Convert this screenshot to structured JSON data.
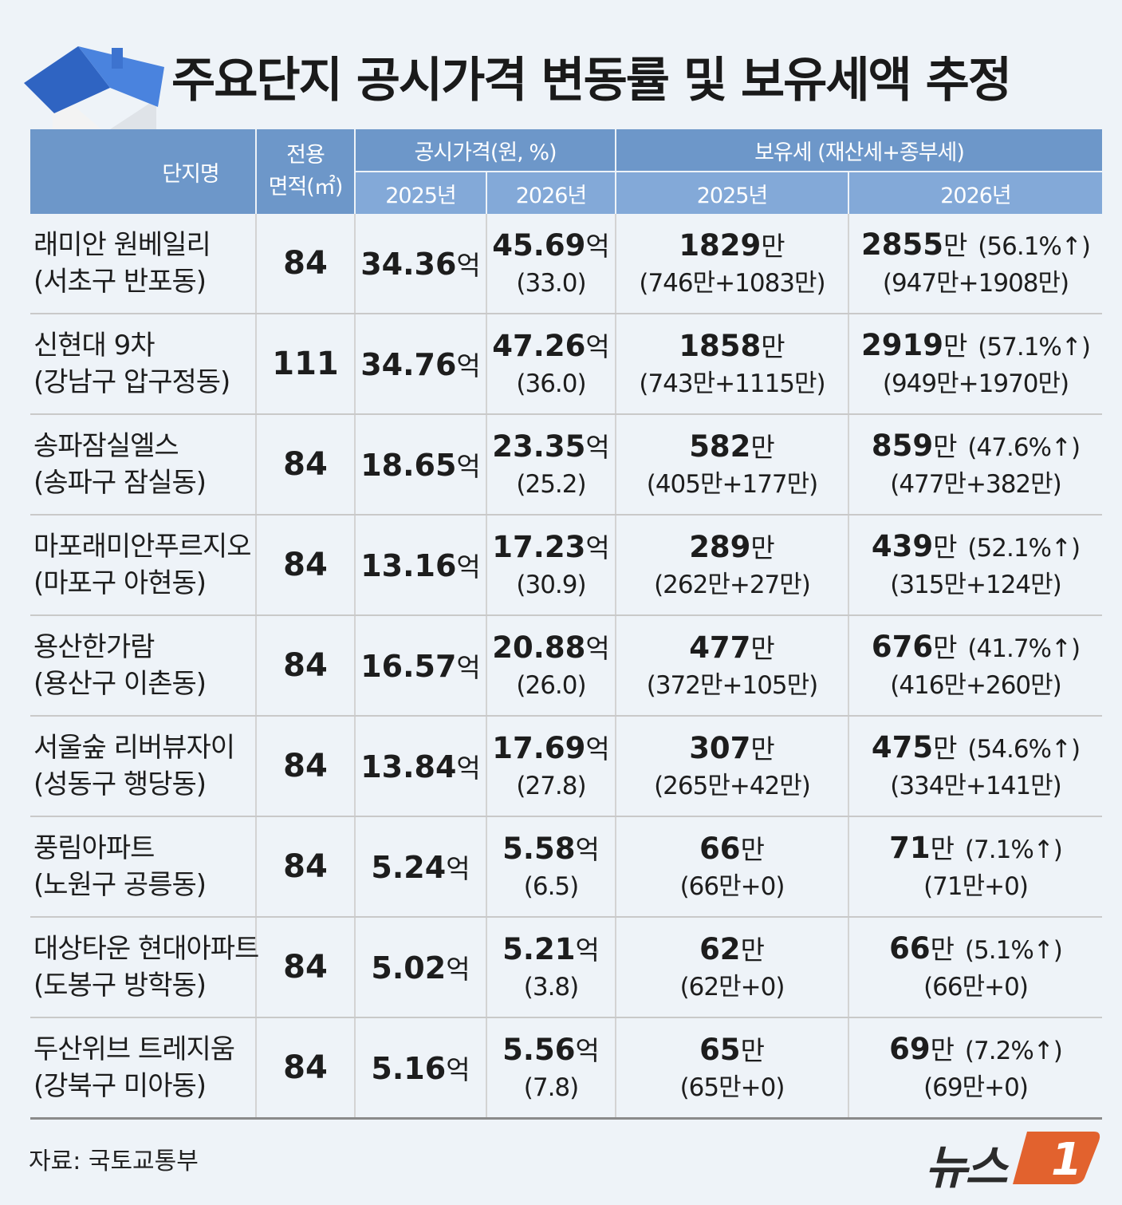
{
  "title": "주요단지 공시가격 변동률 및 보유세액 추정",
  "header": {
    "complex": "단지명",
    "area_line1": "전용",
    "area_line2": "면적(㎡)",
    "price_group": "공시가격(원, %)",
    "tax_group": "보유세 (재산세+종부세)",
    "y2025": "2025년",
    "y2026": "2026년"
  },
  "units": {
    "eok": "억",
    "man": "만"
  },
  "chart_data": {
    "type": "table",
    "title": "주요단지 공시가격 변동률 및 보유세액 추정",
    "columns": [
      "단지명",
      "전용 면적(㎡)",
      "공시가격 2025년",
      "공시가격 2026년",
      "보유세 2025년",
      "보유세 2026년"
    ],
    "rows": [
      {
        "name": "래미안 원베일리",
        "district": "(서초구 반포동)",
        "area": "84",
        "price2025": "34.36",
        "price2026": "45.69",
        "price_change": "(33.0)",
        "tax2025": "1829",
        "tax2025_detail": "(746만+1083만)",
        "tax2026": "2855",
        "tax2026_change": "(56.1%↑)",
        "tax2026_detail": "(947만+1908만)"
      },
      {
        "name": "신현대 9차",
        "district": "(강남구 압구정동)",
        "area": "111",
        "price2025": "34.76",
        "price2026": "47.26",
        "price_change": "(36.0)",
        "tax2025": "1858",
        "tax2025_detail": "(743만+1115만)",
        "tax2026": "2919",
        "tax2026_change": "(57.1%↑)",
        "tax2026_detail": "(949만+1970만)"
      },
      {
        "name": "송파잠실엘스",
        "district": "(송파구 잠실동)",
        "area": "84",
        "price2025": "18.65",
        "price2026": "23.35",
        "price_change": "(25.2)",
        "tax2025": "582",
        "tax2025_detail": "(405만+177만)",
        "tax2026": "859",
        "tax2026_change": "(47.6%↑)",
        "tax2026_detail": "(477만+382만)"
      },
      {
        "name": "마포래미안푸르지오",
        "district": "(마포구 아현동)",
        "area": "84",
        "price2025": "13.16",
        "price2026": "17.23",
        "price_change": "(30.9)",
        "tax2025": "289",
        "tax2025_detail": "(262만+27만)",
        "tax2026": "439",
        "tax2026_change": "(52.1%↑)",
        "tax2026_detail": "(315만+124만)"
      },
      {
        "name": "용산한가람",
        "district": "(용산구 이촌동)",
        "area": "84",
        "price2025": "16.57",
        "price2026": "20.88",
        "price_change": "(26.0)",
        "tax2025": "477",
        "tax2025_detail": "(372만+105만)",
        "tax2026": "676",
        "tax2026_change": "(41.7%↑)",
        "tax2026_detail": "(416만+260만)"
      },
      {
        "name": "서울숲 리버뷰자이",
        "district": "(성동구 행당동)",
        "area": "84",
        "price2025": "13.84",
        "price2026": "17.69",
        "price_change": "(27.8)",
        "tax2025": "307",
        "tax2025_detail": "(265만+42만)",
        "tax2026": "475",
        "tax2026_change": "(54.6%↑)",
        "tax2026_detail": "(334만+141만)"
      },
      {
        "name": "풍림아파트",
        "district": "(노원구 공릉동)",
        "area": "84",
        "price2025": "5.24",
        "price2026": "5.58",
        "price_change": "(6.5)",
        "tax2025": "66",
        "tax2025_detail": "(66만+0)",
        "tax2026": "71",
        "tax2026_change": "(7.1%↑)",
        "tax2026_detail": "(71만+0)"
      },
      {
        "name": "대상타운 현대아파트",
        "district": "(도봉구 방학동)",
        "area": "84",
        "price2025": "5.02",
        "price2026": "5.21",
        "price_change": "(3.8)",
        "tax2025": "62",
        "tax2025_detail": "(62만+0)",
        "tax2026": "66",
        "tax2026_change": "(5.1%↑)",
        "tax2026_detail": "(66만+0)"
      },
      {
        "name": "두산위브 트레지움",
        "district": "(강북구 미아동)",
        "area": "84",
        "price2025": "5.16",
        "price2026": "5.56",
        "price_change": "(7.8)",
        "tax2025": "65",
        "tax2025_detail": "(65만+0)",
        "tax2026": "69",
        "tax2026_change": "(7.2%↑)",
        "tax2026_detail": "(69만+0)"
      }
    ]
  },
  "source": "자료: 국토교통부",
  "logo": {
    "text": "뉴스",
    "mark": "1"
  },
  "colors": {
    "header_dark": "#6d97c9",
    "header_light": "#83a9d8",
    "background": "#eef3f8",
    "logo_accent": "#e2622e"
  }
}
